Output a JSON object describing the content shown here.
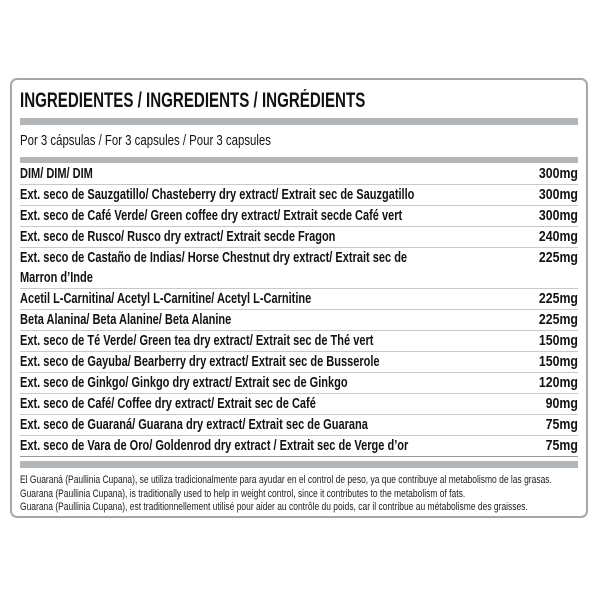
{
  "label": {
    "title": "INGREDIENTES / INGREDIENTS / INGRÉDIENTS",
    "serving": "Por 3 cápsulas / For 3 capsules / Pour 3 capsules",
    "rows": [
      {
        "name": "DIM/ DIM/ DIM",
        "amount": "300mg"
      },
      {
        "name": "Ext. seco de Sauzgatillo/ Chasteberry dry extract/ Extrait sec de Sauzgatillo",
        "amount": "300mg"
      },
      {
        "name": "Ext. seco de Café Verde/ Green coffee dry extract/ Extrait secde Café vert",
        "amount": "300mg"
      },
      {
        "name": "Ext. seco de Rusco/ Rusco dry extract/ Extrait secde Fragon",
        "amount": "240mg"
      },
      {
        "name": "Ext. seco de Castaño de Indias/ Horse Chestnut dry extract/ Extrait sec de",
        "name2": "Marron d’Inde",
        "amount": "225mg"
      },
      {
        "name": "Acetil L-Carnitina/ Acetyl L-Carnitine/ Acetyl L-Carnitine",
        "amount": "225mg"
      },
      {
        "name": "Beta Alanina/ Beta Alanine/ Beta Alanine",
        "amount": "225mg"
      },
      {
        "name": "Ext. seco de Té Verde/ Green tea dry extract/ Extrait sec de Thé vert",
        "amount": "150mg"
      },
      {
        "name": "Ext. seco de Gayuba/ Bearberry dry extract/ Extrait sec de Busserole",
        "amount": "150mg"
      },
      {
        "name": "Ext. seco de Ginkgo/ Ginkgo dry extract/ Extrait sec de Ginkgo",
        "amount": "120mg"
      },
      {
        "name": "Ext. seco de Café/ Coffee dry extract/ Extrait sec de Café",
        "amount": "90mg"
      },
      {
        "name": "Ext. seco de Guaraná/ Guarana dry extract/ Extrait sec de Guarana",
        "amount": "75mg"
      },
      {
        "name": "Ext. seco de Vara de Oro/ Goldenrod dry extract / Extrait sec de Verge d’or",
        "amount": "75mg"
      }
    ],
    "footnotes": [
      "El Guaraná (Paullinia Cupana), se utiliza tradicionalmente para ayudar en el control de peso, ya que contribuye al metabolismo de las grasas.",
      "Guarana (Paullinia Cupana), is traditionally used to help in weight control, since it contributes to the metabolism of fats.",
      "Guarana (Paullinia Cupana), est traditionnellement utilisé pour aider au contrôle du poids, car il contribue au métabolisme des graisses."
    ],
    "colors": {
      "divider_bar": "#b3b6b8",
      "row_separator": "#c9c9c9",
      "card_border": "#a5a8aa",
      "text": "#121212"
    }
  }
}
